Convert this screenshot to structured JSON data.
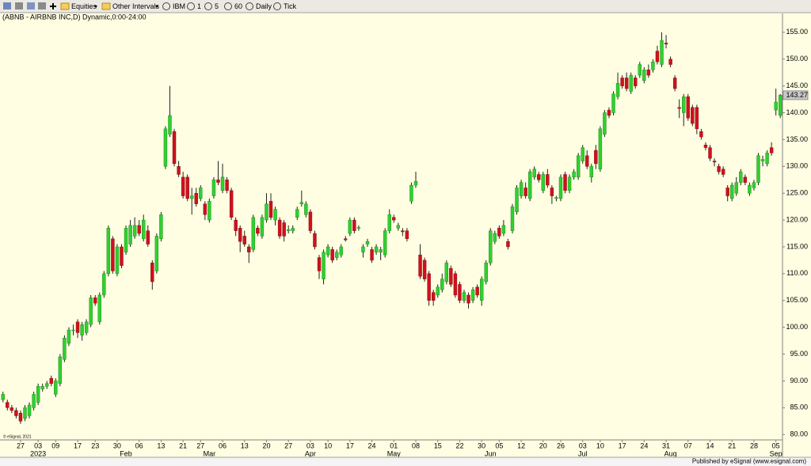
{
  "toolbar": {
    "items": [
      "Equities",
      "Other Intervals",
      "IBM",
      "1",
      "5",
      "60",
      "Daily",
      "Tick"
    ]
  },
  "chart_data": {
    "type": "candlestick",
    "title": "(ABNB - AIRBNB INC,D) Dynamic,0:00-24:00",
    "watermark": "© eSignal, 2021",
    "categories": [
      null,
      null,
      null,
      null,
      "27",
      null,
      null,
      null,
      "03",
      null,
      null,
      null,
      "09",
      null,
      null,
      null,
      null,
      "17",
      null,
      null,
      null,
      "23",
      null,
      null,
      null,
      null,
      "30",
      null,
      null,
      null,
      null,
      "06",
      null,
      null,
      null,
      null,
      "13",
      null,
      null,
      null,
      null,
      "21",
      null,
      null,
      null,
      "27",
      null,
      null,
      null,
      null,
      "06",
      null,
      null,
      null,
      null,
      "13",
      null,
      null,
      null,
      null,
      "20",
      null,
      null,
      null,
      null,
      "27",
      null,
      null,
      null,
      null,
      "03",
      null,
      null,
      null,
      "10",
      null,
      null,
      null,
      null,
      "17",
      null,
      null,
      null,
      null,
      "24",
      null,
      null,
      null,
      null,
      "01",
      null,
      null,
      null,
      null,
      "08",
      null,
      null,
      null,
      null,
      "15",
      null,
      null,
      null,
      null,
      "22",
      null,
      null,
      null,
      null,
      "30",
      null,
      null,
      null,
      "05",
      null,
      null,
      null,
      null,
      "12",
      null,
      null,
      null,
      null,
      "20",
      null,
      null,
      null,
      "26",
      null,
      null,
      null,
      null,
      "03",
      null,
      null,
      null,
      "10",
      null,
      null,
      null,
      null,
      "17",
      null,
      null,
      null,
      null,
      "24",
      null,
      null,
      null,
      null,
      "31",
      null,
      null,
      null,
      null,
      "07",
      null,
      null,
      null,
      null,
      "14",
      null,
      null,
      null,
      null,
      "21",
      null,
      null,
      null,
      null,
      "28",
      null,
      null,
      null,
      null,
      "05",
      null
    ],
    "month_labels": [
      null,
      null,
      null,
      null,
      null,
      null,
      null,
      null,
      "2023",
      null,
      null,
      null,
      null,
      null,
      null,
      null,
      null,
      null,
      null,
      null,
      null,
      null,
      null,
      null,
      null,
      null,
      null,
      null,
      "Feb",
      null,
      null,
      null,
      null,
      null,
      null,
      null,
      null,
      null,
      null,
      null,
      null,
      null,
      null,
      null,
      null,
      null,
      null,
      "Mar",
      null,
      null,
      null,
      null,
      null,
      null,
      null,
      null,
      null,
      null,
      null,
      null,
      null,
      null,
      null,
      null,
      null,
      null,
      null,
      null,
      null,
      null,
      "Apr",
      null,
      null,
      null,
      null,
      null,
      null,
      null,
      null,
      null,
      null,
      null,
      null,
      null,
      null,
      null,
      null,
      null,
      null,
      "May",
      null,
      null,
      null,
      null,
      null,
      null,
      null,
      null,
      null,
      null,
      null,
      null,
      null,
      null,
      null,
      null,
      null,
      null,
      null,
      null,
      null,
      "Jun",
      null,
      null,
      null,
      null,
      null,
      null,
      null,
      null,
      null,
      null,
      null,
      null,
      null,
      null,
      null,
      null,
      null,
      null,
      null,
      null,
      "Jul",
      null,
      null,
      null,
      null,
      null,
      null,
      null,
      null,
      null,
      null,
      null,
      null,
      null,
      null,
      null,
      null,
      null,
      null,
      null,
      "Aug",
      null,
      null,
      null,
      null,
      null,
      null,
      null,
      null,
      null,
      null,
      null,
      null,
      null,
      null,
      null,
      null,
      null,
      null,
      null,
      null,
      null,
      null,
      null,
      "Sep",
      null
    ],
    "open": [
      86.5,
      86,
      85,
      84.5,
      84,
      83,
      83.5,
      85,
      86,
      88.5,
      89,
      90.5,
      87.5,
      89.5,
      94,
      97,
      99.5,
      101,
      98.5,
      99,
      100.5,
      105.5,
      101,
      106,
      110,
      116.5,
      110,
      115,
      114,
      115.5,
      117,
      119,
      116.5,
      118,
      112,
      110.5,
      116.5,
      130,
      136,
      136.5,
      130,
      128,
      128,
      124,
      125,
      124,
      123,
      120,
      124.5,
      127.5,
      125.5,
      127.5,
      125.5,
      120,
      118.5,
      117,
      115,
      114.5,
      118.5,
      117,
      120,
      123.5,
      120,
      120,
      119.5,
      118,
      118,
      120.5,
      123,
      121,
      121.5,
      117.5,
      113,
      109,
      113.5,
      114.5,
      113,
      113.5,
      116.5,
      117.5,
      120,
      118.5,
      114,
      115.5,
      114.5,
      114,
      114,
      113.5,
      118,
      120.5,
      118.5,
      118,
      118,
      123.5,
      126.5,
      113.5,
      112.5,
      110,
      106.5,
      106,
      107,
      108.5,
      111,
      110,
      108,
      105,
      106,
      105,
      107.5,
      105,
      108.5,
      112,
      116,
      118.5,
      117.5,
      116,
      118,
      121.5,
      124.5,
      126,
      124,
      128,
      128.5,
      125.5,
      128.5,
      126,
      124,
      124,
      128.5,
      125.5,
      128,
      128,
      131,
      132,
      128,
      133,
      129.5,
      136,
      140.5,
      140,
      143,
      146.5,
      146.5,
      144,
      146.5,
      147,
      146,
      148,
      148,
      151.5,
      149,
      153,
      150,
      146.5,
      141,
      140,
      143,
      141,
      141,
      136.5,
      134,
      133.5,
      131,
      130,
      129.5,
      126,
      124,
      125,
      127,
      128,
      125,
      126,
      127,
      131,
      130.5,
      133.5,
      140.5,
      139.5
    ],
    "high": [
      88,
      86.5,
      85.5,
      85,
      84.5,
      85.5,
      86,
      88,
      89.5,
      89.5,
      90,
      91,
      90.5,
      95,
      98.5,
      100,
      100.5,
      101.5,
      101,
      101.5,
      106,
      106,
      106.5,
      110.5,
      119,
      117,
      115.5,
      115.5,
      119,
      120,
      120.5,
      120,
      121,
      119,
      112.5,
      117.5,
      121.5,
      137.5,
      145,
      137,
      131,
      129,
      128.5,
      126,
      126,
      126.5,
      123.5,
      124,
      128,
      131,
      130.5,
      128,
      126,
      120.5,
      119,
      118,
      115.5,
      121,
      119,
      121,
      125,
      125,
      122.5,
      120.5,
      120,
      119,
      119,
      122.5,
      125.5,
      123.5,
      122,
      118,
      113.5,
      114.5,
      115.5,
      115,
      114.5,
      115.5,
      117,
      120.5,
      120.5,
      119,
      115.5,
      116.5,
      115,
      115.5,
      115,
      118.5,
      122,
      121,
      119.5,
      118.5,
      118.5,
      127,
      129,
      115.5,
      113,
      110.5,
      107,
      108,
      110,
      112.5,
      111.5,
      110.5,
      108.5,
      107,
      106.5,
      107.5,
      108,
      109.5,
      112.5,
      118.5,
      118,
      119,
      120,
      116.5,
      123,
      126.5,
      127.5,
      127,
      129.5,
      130,
      129,
      129,
      129.5,
      126.5,
      124.5,
      128.5,
      129,
      128.5,
      129.5,
      132.5,
      134,
      133,
      130.5,
      134,
      137.5,
      140.5,
      141,
      144,
      147.5,
      147,
      147.5,
      147.5,
      147,
      149.5,
      148.5,
      149,
      150,
      152.5,
      155,
      154.5,
      150.5,
      147,
      142.5,
      143.5,
      143.5,
      141.5,
      141.5,
      137,
      134.5,
      134,
      131.5,
      130.5,
      130,
      126.5,
      127,
      128,
      129.5,
      128.5,
      127,
      127.5,
      132.5,
      132,
      133,
      134.5,
      144.5,
      143.5
    ],
    "low": [
      86,
      84.5,
      84,
      83,
      82,
      82.5,
      83,
      84.5,
      85.5,
      88,
      88.5,
      89,
      87,
      89,
      93.5,
      96.5,
      98.5,
      98,
      97.5,
      98.5,
      100,
      104,
      100.5,
      105.5,
      109.5,
      110,
      109.5,
      111,
      113.5,
      115,
      116.5,
      117,
      116,
      115,
      107,
      110,
      116,
      129.5,
      135.5,
      130,
      128,
      124,
      123.5,
      121,
      122.5,
      123.5,
      120,
      119.5,
      124,
      126.5,
      125,
      125,
      120,
      117,
      114,
      115,
      112,
      114,
      117,
      116.5,
      119.5,
      120,
      119,
      116.5,
      116,
      117.5,
      117.5,
      120,
      122.5,
      120.5,
      117.5,
      114.5,
      109,
      108,
      113,
      112,
      112.5,
      113,
      116,
      117,
      117.5,
      118,
      113,
      115,
      112,
      113.5,
      112.5,
      113,
      117.5,
      119.5,
      118,
      117,
      116,
      123,
      126,
      109,
      108.5,
      104,
      104,
      105.5,
      106.5,
      108,
      107.5,
      105.5,
      104.5,
      104.5,
      103.5,
      104.5,
      105.5,
      104,
      108,
      111.5,
      115.5,
      116.5,
      117,
      114.5,
      117.5,
      121,
      124,
      124,
      123.5,
      127.5,
      127,
      125,
      126,
      123,
      123.5,
      123.5,
      125,
      125,
      127.5,
      127.5,
      130.5,
      129.5,
      127,
      129.5,
      129,
      135.5,
      139,
      139.5,
      142.5,
      144.5,
      144,
      143.5,
      144.5,
      146.5,
      145.5,
      146.5,
      147.5,
      149,
      148.5,
      152,
      148.5,
      144,
      139,
      137.5,
      138.5,
      137.5,
      136,
      135,
      133,
      131,
      130,
      128.5,
      128,
      123.5,
      123.5,
      124.5,
      126.5,
      126.5,
      124.5,
      125.5,
      126.5,
      130,
      130,
      132,
      139.5,
      139
    ],
    "close": [
      87.5,
      85,
      84.5,
      83.5,
      82.5,
      85,
      85.5,
      87.5,
      89,
      89,
      89.5,
      89.5,
      90,
      94.5,
      98,
      99.5,
      99.5,
      99,
      100.5,
      101,
      105.5,
      104.5,
      106,
      110,
      118.5,
      110.5,
      115,
      111.5,
      118.5,
      119,
      119,
      117.5,
      120,
      115.5,
      108.5,
      117,
      121,
      137,
      139.5,
      130.5,
      128.5,
      124.5,
      124,
      124.5,
      123,
      126,
      121,
      123.5,
      127.5,
      127,
      128,
      125.5,
      120.5,
      118,
      116,
      115.5,
      114,
      120.5,
      117.5,
      120.5,
      123,
      120.5,
      122,
      117,
      117,
      118.2,
      118.5,
      122,
      123.3,
      123,
      118,
      115,
      110.5,
      114,
      115,
      112.5,
      114,
      115,
      116.3,
      120,
      118,
      118.6,
      115,
      116,
      112.5,
      115,
      114.5,
      118,
      121,
      120,
      119,
      117.8,
      116.5,
      126.5,
      127.2,
      109.5,
      109,
      105,
      105,
      107.5,
      109,
      112,
      108,
      106,
      105,
      106.5,
      104.5,
      107,
      106,
      109,
      112,
      118,
      117.5,
      117,
      119,
      115,
      122.5,
      126,
      127,
      124.5,
      129,
      129.5,
      127.5,
      128.5,
      126.5,
      124.5,
      124.2,
      128,
      125.5,
      128,
      129,
      132,
      133.5,
      130,
      130,
      130.5,
      137,
      140,
      139.5,
      143.5,
      145.5,
      145,
      144.5,
      147,
      145,
      149,
      148,
      147,
      149.5,
      149.5,
      153.5,
      152.8,
      149,
      144.5,
      140.8,
      143,
      139,
      138,
      137,
      135.5,
      133.5,
      131.5,
      130.8,
      129,
      128.5,
      124.5,
      126.5,
      127,
      129,
      127,
      126.5,
      127,
      132,
      131.3,
      132.5,
      132.5,
      142,
      143.27
    ],
    "up_color": "#2fd02f",
    "down_color": "#d0101c",
    "ylim": [
      79,
      156.6
    ],
    "yticks": [
      {
        "value": 80,
        "label": "80.00"
      },
      {
        "value": 85,
        "label": "85.00"
      },
      {
        "value": 90,
        "label": "90.00"
      },
      {
        "value": 95,
        "label": "95.00"
      },
      {
        "value": 100,
        "label": "100.00"
      },
      {
        "value": 105,
        "label": "105.00"
      },
      {
        "value": 110,
        "label": "110.00"
      },
      {
        "value": 115,
        "label": "115.00"
      },
      {
        "value": 120,
        "label": "120.00"
      },
      {
        "value": 125,
        "label": "125.00"
      },
      {
        "value": 130,
        "label": "130.00"
      },
      {
        "value": 135,
        "label": "135.00"
      },
      {
        "value": 140,
        "label": "140.00"
      },
      {
        "value": 145,
        "label": "145.00"
      },
      {
        "value": 150,
        "label": "150.00"
      },
      {
        "value": 155,
        "label": "155.00"
      }
    ],
    "grid": false
  },
  "footer": "Published by eSignal (www.esignal.com)"
}
